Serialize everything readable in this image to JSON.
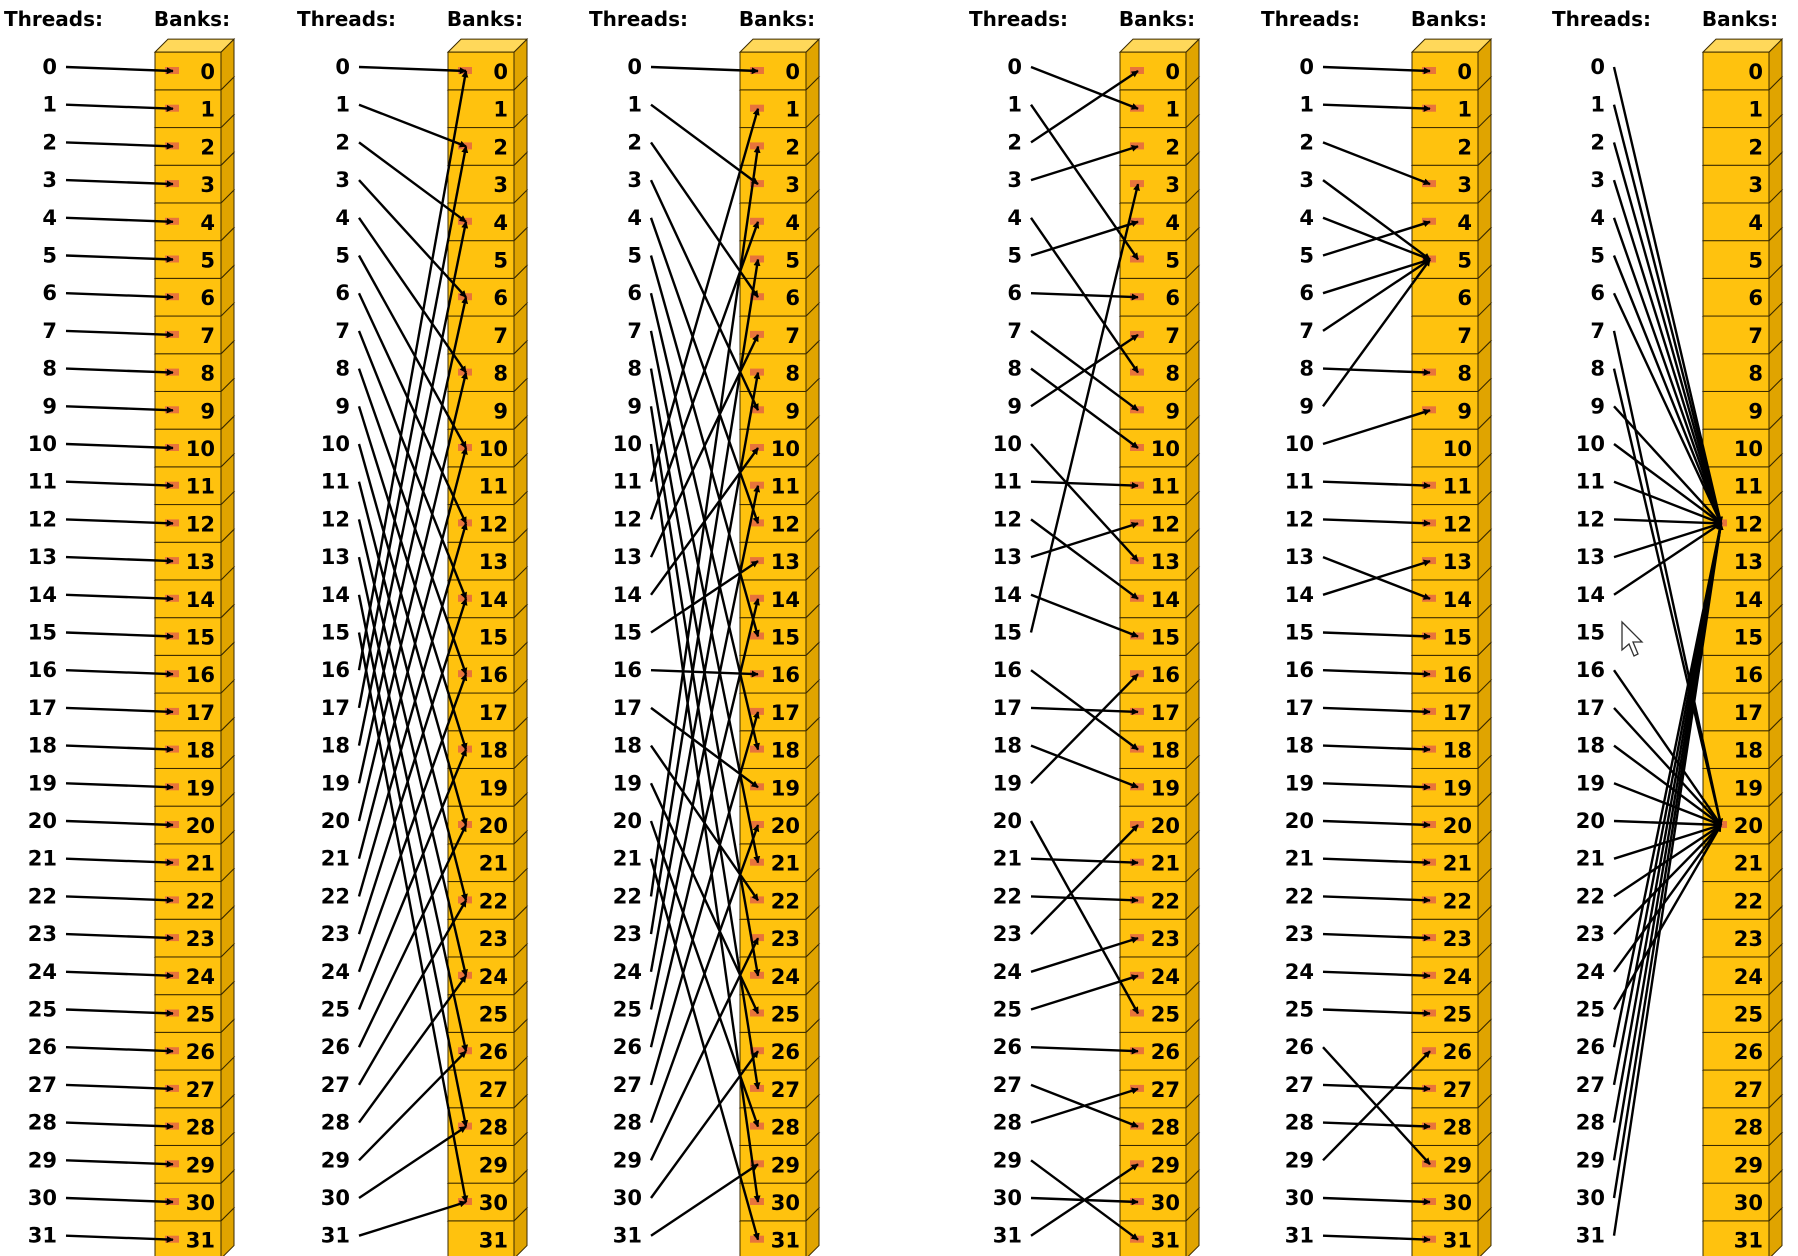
{
  "threads_label": "Threads:",
  "banks_label": "Banks:",
  "banks_per_panel": 32,
  "colors": {
    "bank_fill": "#FFC20E",
    "bank_top": "#FFD85A",
    "bank_side": "#E0A400",
    "bank_stroke": "#3a2a00",
    "marker": "#E8743B",
    "arrow": "#000000"
  },
  "panels": [
    {
      "name": "linear-addressing-stride-1",
      "markers": [
        0,
        1,
        2,
        3,
        4,
        5,
        6,
        7,
        8,
        9,
        10,
        11,
        12,
        13,
        14,
        15,
        16,
        17,
        18,
        19,
        20,
        21,
        22,
        23,
        24,
        25,
        26,
        27,
        28,
        29,
        30,
        31
      ],
      "mapping": [
        0,
        1,
        2,
        3,
        4,
        5,
        6,
        7,
        8,
        9,
        10,
        11,
        12,
        13,
        14,
        15,
        16,
        17,
        18,
        19,
        20,
        21,
        22,
        23,
        24,
        25,
        26,
        27,
        28,
        29,
        30,
        31
      ]
    },
    {
      "name": "linear-addressing-stride-2",
      "markers": [
        0,
        2,
        4,
        6,
        8,
        10,
        12,
        14,
        16,
        18,
        20,
        22,
        24,
        26,
        28,
        30
      ],
      "mapping": [
        0,
        2,
        4,
        6,
        8,
        10,
        12,
        14,
        16,
        18,
        20,
        22,
        24,
        26,
        28,
        30,
        0,
        2,
        4,
        6,
        8,
        10,
        12,
        14,
        16,
        18,
        20,
        22,
        24,
        26,
        28,
        30
      ]
    },
    {
      "name": "linear-addressing-stride-3",
      "markers": [
        0,
        1,
        2,
        3,
        4,
        5,
        6,
        7,
        8,
        9,
        10,
        11,
        12,
        13,
        14,
        15,
        16,
        17,
        18,
        19,
        20,
        21,
        22,
        23,
        24,
        25,
        26,
        27,
        28,
        29,
        30,
        31
      ],
      "mapping": [
        0,
        3,
        6,
        9,
        12,
        15,
        18,
        21,
        24,
        27,
        30,
        1,
        4,
        7,
        10,
        13,
        16,
        19,
        22,
        25,
        28,
        31,
        2,
        5,
        8,
        11,
        14,
        17,
        20,
        23,
        26,
        29
      ]
    },
    {
      "name": "random-permutation",
      "markers": [
        0,
        1,
        2,
        3,
        4,
        5,
        6,
        7,
        8,
        9,
        10,
        11,
        12,
        13,
        14,
        15,
        16,
        17,
        18,
        19,
        20,
        21,
        22,
        23,
        24,
        25,
        26,
        27,
        28,
        29,
        30,
        31
      ],
      "mapping": [
        1,
        5,
        0,
        2,
        8,
        4,
        6,
        9,
        10,
        7,
        13,
        11,
        14,
        12,
        15,
        3,
        18,
        17,
        19,
        16,
        25,
        21,
        22,
        20,
        23,
        24,
        26,
        28,
        27,
        31,
        30,
        29
      ]
    },
    {
      "name": "broadcast-to-bank-5",
      "markers": [
        0,
        1,
        3,
        4,
        5,
        8,
        9,
        11,
        12,
        13,
        14,
        15,
        16,
        17,
        18,
        19,
        20,
        21,
        22,
        23,
        24,
        25,
        26,
        27,
        28,
        29,
        30,
        31
      ],
      "mapping": [
        0,
        1,
        3,
        5,
        5,
        4,
        5,
        5,
        8,
        5,
        9,
        11,
        12,
        14,
        13,
        15,
        16,
        17,
        18,
        19,
        20,
        21,
        22,
        23,
        24,
        25,
        29,
        27,
        28,
        26,
        30,
        31
      ]
    },
    {
      "name": "broadcast-to-banks-12-and-20",
      "markers": [
        12,
        20
      ],
      "mapping": [
        12,
        12,
        12,
        12,
        12,
        12,
        12,
        20,
        20,
        12,
        12,
        12,
        12,
        12,
        12,
        null,
        20,
        20,
        20,
        20,
        20,
        20,
        20,
        20,
        20,
        20,
        12,
        12,
        12,
        12,
        12,
        12
      ]
    }
  ]
}
